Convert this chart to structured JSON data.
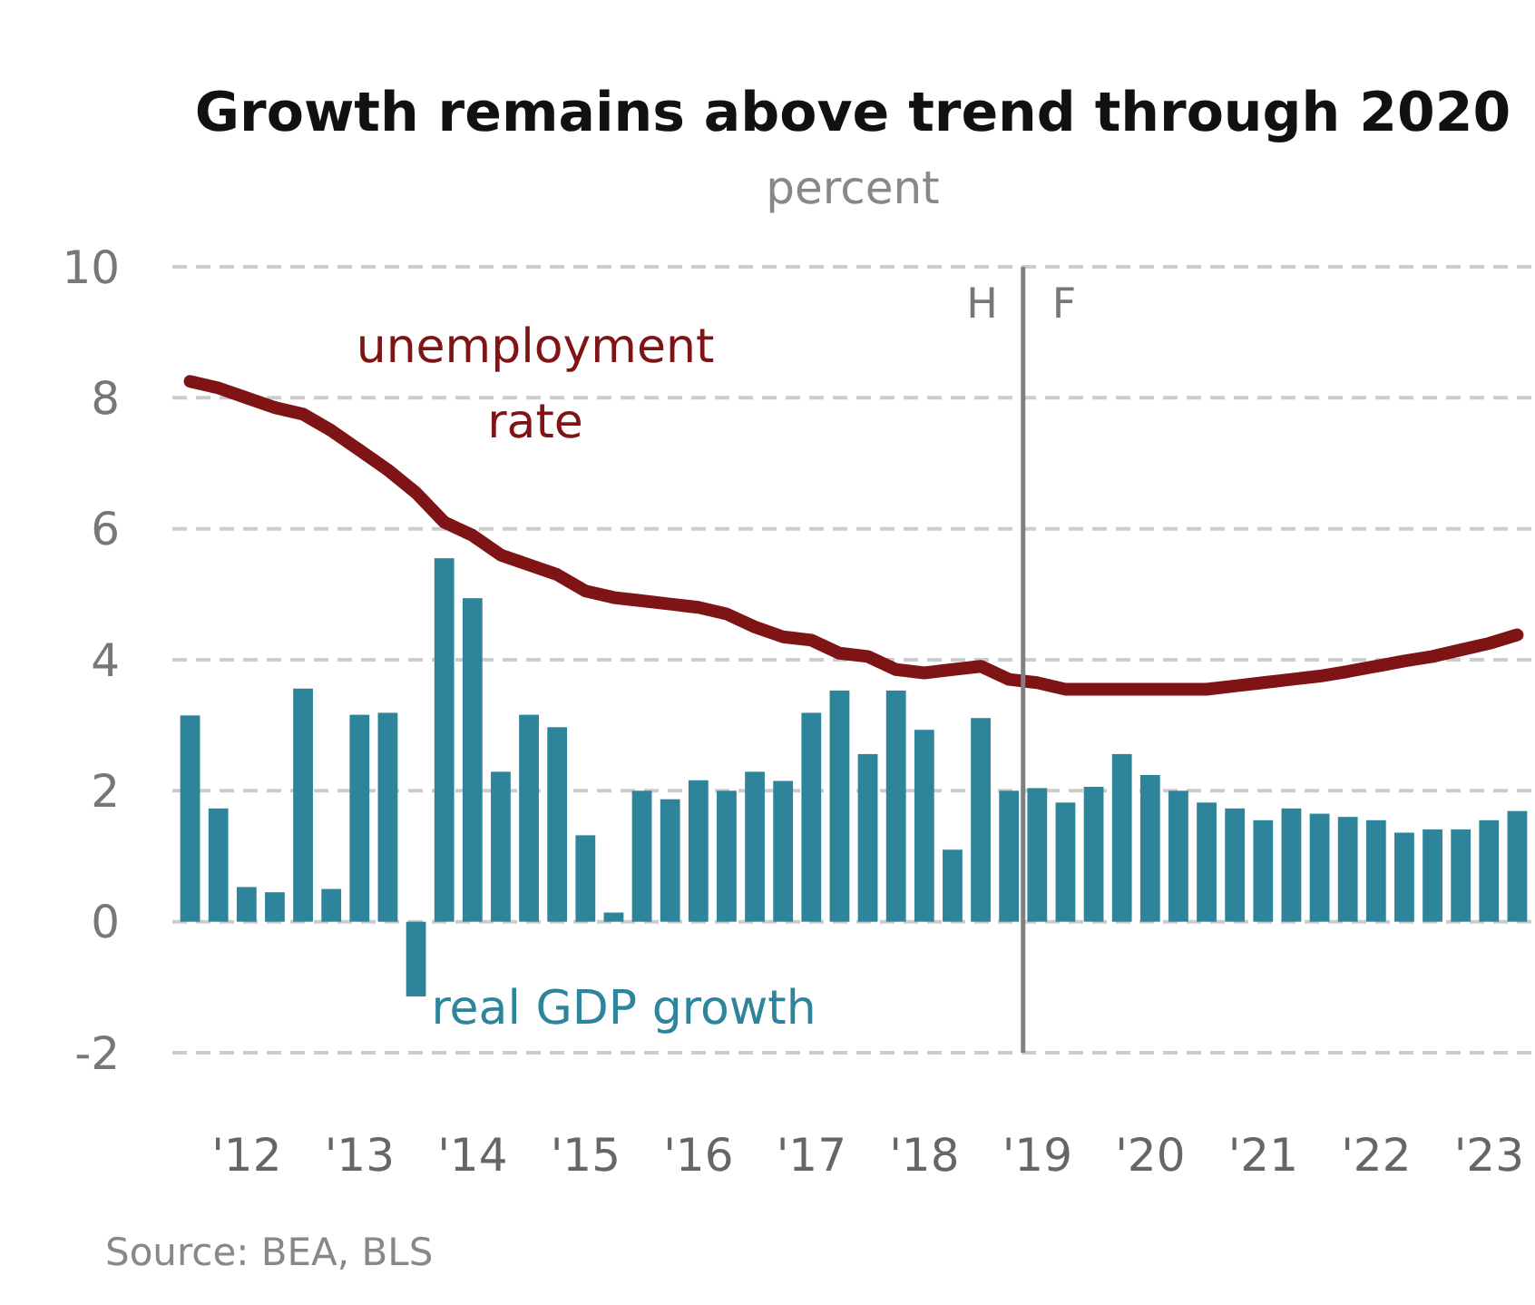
{
  "chart_data": {
    "type": "bar",
    "title": "Growth remains above trend through 2020",
    "ylabel": "percent",
    "categories": [
      null,
      null,
      "'12",
      null,
      null,
      null,
      "'13",
      null,
      null,
      null,
      "'14",
      null,
      null,
      null,
      "'15",
      null,
      null,
      null,
      "'16",
      null,
      null,
      null,
      "'17",
      null,
      null,
      null,
      "'18",
      null,
      null,
      null,
      "'19",
      null,
      null,
      null,
      "'20",
      null,
      null,
      null,
      "'21",
      null,
      null,
      null,
      "'22",
      null,
      null,
      null,
      "'23",
      null
    ],
    "series": [
      {
        "name": "real GDP growth",
        "color": "#2e849a",
        "values": [
          3.15,
          1.73,
          0.53,
          0.45,
          3.56,
          0.5,
          3.16,
          3.19,
          -1.14,
          5.55,
          4.94,
          2.29,
          3.16,
          2.97,
          1.32,
          0.14,
          2.0,
          1.87,
          2.16,
          2.0,
          2.29,
          2.15,
          3.19,
          3.53,
          2.56,
          3.53,
          2.93,
          1.1,
          3.11,
          2.0,
          2.04,
          1.82,
          2.06,
          2.56,
          2.24,
          2.0,
          1.82,
          1.73,
          1.55,
          1.73,
          1.65,
          1.6,
          1.55,
          1.36,
          1.41,
          1.41,
          1.55,
          1.69
        ]
      },
      {
        "name": "unemployment rate",
        "type": "line",
        "color": "#7f1416",
        "values": [
          8.25,
          8.15,
          8.0,
          7.85,
          7.75,
          7.5,
          7.2,
          6.9,
          6.55,
          6.1,
          5.9,
          5.6,
          5.45,
          5.3,
          5.05,
          4.95,
          4.9,
          4.85,
          4.8,
          4.7,
          4.5,
          4.35,
          4.3,
          4.1,
          4.05,
          3.85,
          3.8,
          3.85,
          3.9,
          3.7,
          3.65,
          3.55,
          3.55,
          3.55,
          3.55,
          3.55,
          3.55,
          3.6,
          3.65,
          3.7,
          3.75,
          3.82,
          3.9,
          3.98,
          4.05,
          4.15,
          4.25,
          4.38
        ]
      }
    ],
    "ylim": [
      -2,
      10
    ],
    "yticks": [
      -2,
      0,
      2,
      4,
      6,
      8,
      10
    ],
    "grid": "y",
    "legend": false,
    "annotations": [
      "H",
      "F",
      "Source: BEA, BLS"
    ]
  }
}
